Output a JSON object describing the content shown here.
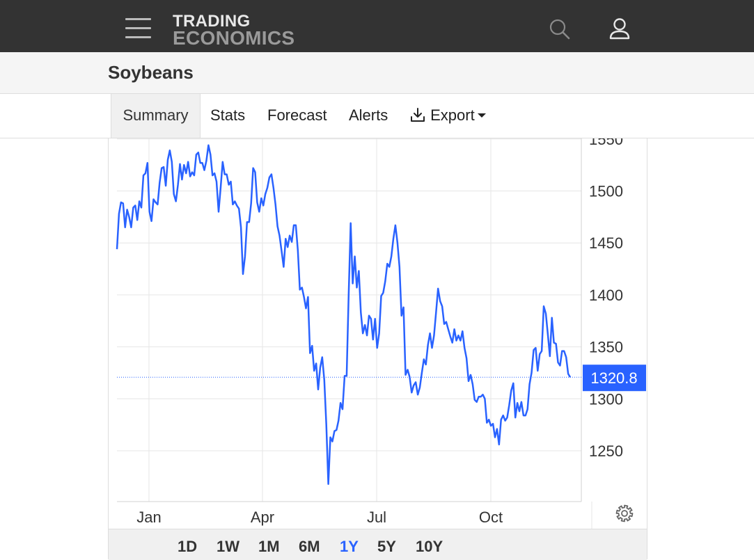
{
  "header": {
    "logo_line1": "TRADING",
    "logo_line2": "ECONOMICS"
  },
  "page": {
    "title": "Soybeans"
  },
  "tabs": [
    {
      "label": "Summary",
      "active": true
    },
    {
      "label": "Stats"
    },
    {
      "label": "Forecast"
    },
    {
      "label": "Alerts"
    },
    {
      "label": "Export",
      "icon": "download-icon",
      "has_dropdown": true
    }
  ],
  "range_buttons": [
    {
      "label": "1D"
    },
    {
      "label": "1W"
    },
    {
      "label": "1M"
    },
    {
      "label": "6M"
    },
    {
      "label": "1Y",
      "active": true
    },
    {
      "label": "5Y"
    },
    {
      "label": "10Y"
    }
  ],
  "colors": {
    "line": "#2962ff",
    "header_bg": "#333333",
    "active_range": "#2962ff",
    "last_value_badge": "#2962ff"
  },
  "chart_data": {
    "type": "line",
    "series": [
      {
        "values": [
          1444,
          1478,
          1489,
          1488,
          1465,
          1482,
          1475,
          1465,
          1484,
          1486,
          1472,
          1490,
          1484,
          1515,
          1517,
          1527,
          1480,
          1471,
          1492,
          1489,
          1487,
          1508,
          1522,
          1523,
          1505,
          1530,
          1539,
          1528,
          1497,
          1490,
          1506,
          1526,
          1511,
          1525,
          1517,
          1528,
          1514,
          1518,
          1515,
          1535,
          1537,
          1527,
          1527,
          1520,
          1529,
          1544,
          1535,
          1515,
          1517,
          1509,
          1480,
          1503,
          1528,
          1516,
          1516,
          1506,
          1509,
          1487,
          1490,
          1486,
          1483,
          1465,
          1420,
          1437,
          1470,
          1470,
          1488,
          1522,
          1518,
          1489,
          1480,
          1493,
          1486,
          1497,
          1503,
          1513,
          1516,
          1503,
          1487,
          1466,
          1457,
          1442,
          1427,
          1454,
          1446,
          1457,
          1451,
          1467,
          1467,
          1443,
          1405,
          1407,
          1398,
          1387,
          1398,
          1344,
          1351,
          1327,
          1334,
          1309,
          1330,
          1340,
          1318,
          1275,
          1218,
          1263,
          1259,
          1269,
          1270,
          1279,
          1296,
          1290,
          1322,
          1322,
          1400,
          1469,
          1411,
          1437,
          1407,
          1423,
          1383,
          1363,
          1371,
          1361,
          1380,
          1377,
          1357,
          1377,
          1349,
          1363,
          1399,
          1402,
          1413,
          1430,
          1427,
          1437,
          1454,
          1467,
          1450,
          1427,
          1380,
          1388,
          1323,
          1328,
          1321,
          1306,
          1313,
          1316,
          1304,
          1311,
          1325,
          1338,
          1333,
          1352,
          1363,
          1349,
          1361,
          1383,
          1406,
          1394,
          1389,
          1372,
          1374,
          1367,
          1360,
          1354,
          1367,
          1356,
          1361,
          1356,
          1365,
          1349,
          1339,
          1317,
          1323,
          1314,
          1299,
          1297,
          1302,
          1302,
          1304,
          1300,
          1277,
          1280,
          1274,
          1276,
          1263,
          1271,
          1256,
          1280,
          1284,
          1279,
          1282,
          1294,
          1308,
          1315,
          1282,
          1296,
          1288,
          1297,
          1284,
          1284,
          1290,
          1314,
          1325,
          1347,
          1349,
          1327,
          1343,
          1346,
          1389,
          1382,
          1362,
          1341,
          1378,
          1354,
          1353,
          1335,
          1332,
          1346,
          1346,
          1340,
          1324,
          1320.8
        ]
      }
    ],
    "last_value": 1320.8,
    "x_ticks": [
      "Jan",
      "Apr",
      "Jul",
      "Oct"
    ],
    "y_ticks": [
      1250,
      1300,
      1350,
      1400,
      1450,
      1500,
      1550
    ],
    "ylim": [
      1200,
      1550
    ],
    "grid": true,
    "y_axis_position": "right"
  }
}
